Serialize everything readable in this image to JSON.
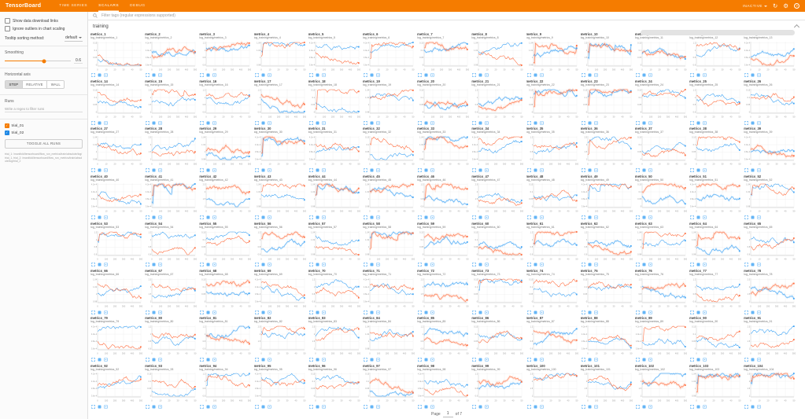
{
  "header": {
    "logo": "TensorBoard",
    "tabs": [
      {
        "label": "TIME SERIES",
        "active": false
      },
      {
        "label": "SCALARS",
        "active": true
      },
      {
        "label": "DEBUG",
        "active": false
      }
    ],
    "status": "INACTIVE",
    "icons": [
      "refresh-icon",
      "settings-icon",
      "help-icon"
    ],
    "refresh_glyph": "↻",
    "settings_glyph": "⚙",
    "help_glyph": "?"
  },
  "sidebar": {
    "checkboxes": [
      {
        "label": "Show data download links",
        "checked": false
      },
      {
        "label": "Ignore outliers in chart scaling",
        "checked": false
      }
    ],
    "tooltip_sort": {
      "label": "Tooltip sorting method:",
      "value": "default"
    },
    "smoothing": {
      "label": "Smoothing",
      "value": "0.6"
    },
    "horizontal_axis": {
      "label": "Horizontal axis",
      "options": [
        "STEP",
        "RELATIVE",
        "WALL"
      ],
      "selected": "STEP"
    },
    "runs": {
      "label": "Runs",
      "filter_placeholder": "Write a regex to filter runs",
      "items": [
        {
          "name": "trial_01",
          "color": "#f57c00",
          "checked": true
        },
        {
          "name": "trial_02",
          "color": "#1e88e5",
          "checked": true
        }
      ],
      "toggle_all": "TOGGLE ALL RUNS",
      "caption": "trial_1: /manifold/tensorboard/flow_run_metrics/train/absolute/log/trial_1, trial_2: /manifold/tensorboard/flow_run_metrics/train/absolute/log/trial_2"
    }
  },
  "main": {
    "filter_placeholder": "Filter tags (regular expressions supported)",
    "section": {
      "title": "training"
    },
    "grid": {
      "columns": 13,
      "count": 104,
      "start_index": 1,
      "title_prefix": "metrics_",
      "subtitle_prefix": "log_training/metrics_",
      "series": [
        {
          "name": "trial_01",
          "color": "#ff7043"
        },
        {
          "name": "trial_02",
          "color": "#42a5f5"
        }
      ],
      "x_tick_sets": [
        [
          "0",
          "100",
          "200",
          "300",
          "400",
          "500"
        ],
        [
          "0",
          "10",
          "20",
          "30",
          "40",
          "50"
        ]
      ],
      "y_tick_sets": [
        [
          "1.04",
          "1.02",
          "1",
          "0.98"
        ],
        [
          "4.2e-4",
          "4.0e-4",
          "3.8e-4",
          "3.6e-4"
        ],
        [
          "0.15",
          "0.1",
          "0.05",
          "0"
        ],
        [
          "2.5",
          "2",
          "1.5",
          "1"
        ],
        [
          "1.2",
          "1",
          "0.8",
          "0.6"
        ]
      ],
      "grid_color": "#ececec",
      "tick_color": "#9e9e9e"
    },
    "pagination": {
      "page_label": "Page",
      "current": "1",
      "of_label": "of 7"
    }
  }
}
